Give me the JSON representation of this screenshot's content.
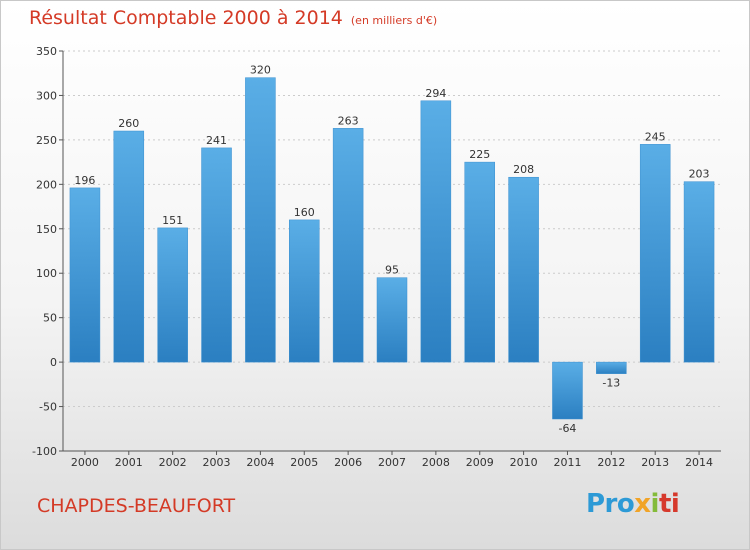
{
  "title": "Résultat Comptable 2000 à 2014",
  "subtitle": "(en milliers d'€)",
  "place": "CHAPDES-BEAUFORT",
  "logo": {
    "p1": "Pro",
    "p2": "x",
    "p3": "i",
    "p4": "ti"
  },
  "colors": {
    "title": "#d43a26",
    "bar_top": "#5aaee6",
    "bar_bottom": "#2b7fc1",
    "grid": "#cccccc"
  },
  "chart_data": {
    "type": "bar",
    "categories": [
      "2000",
      "2001",
      "2002",
      "2003",
      "2004",
      "2005",
      "2006",
      "2007",
      "2008",
      "2009",
      "2010",
      "2011",
      "2012",
      "2013",
      "2014"
    ],
    "values": [
      196,
      260,
      151,
      241,
      320,
      160,
      263,
      95,
      294,
      225,
      208,
      -64,
      -13,
      245,
      203
    ],
    "ylim": [
      -100,
      350
    ],
    "yticks": [
      -100,
      -50,
      0,
      50,
      100,
      150,
      200,
      250,
      300,
      350
    ],
    "grid": true
  }
}
